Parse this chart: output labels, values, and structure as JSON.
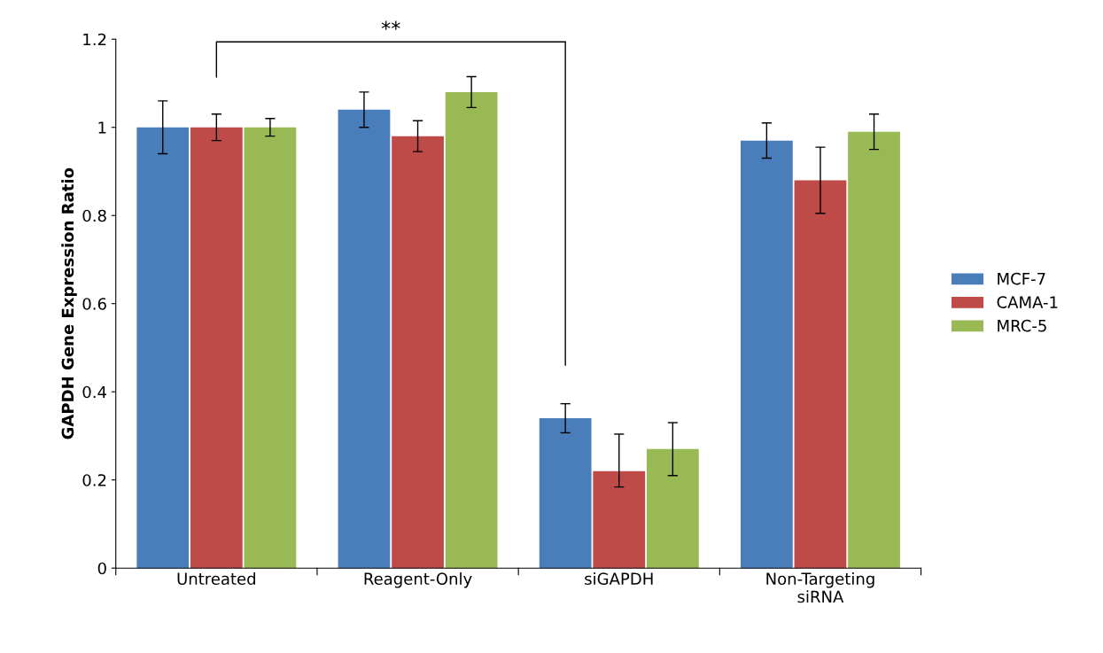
{
  "chart_data": {
    "type": "bar",
    "ylabel": "GAPDH Gene Expression Ratio",
    "categories": [
      "Untreated",
      "Reagent-Only",
      "siGAPDH",
      "Non-Targeting\nsiRNA"
    ],
    "series": [
      {
        "name": "MCF-7",
        "color": "#4a7ebb",
        "values": [
          1.0,
          1.04,
          0.34,
          0.97
        ],
        "errors": [
          0.06,
          0.04,
          0.033,
          0.04
        ]
      },
      {
        "name": "CAMA-1",
        "color": "#be4b48",
        "values": [
          1.0,
          0.98,
          0.22,
          0.88
        ],
        "errors": [
          0.03,
          0.035,
          [
            0.184,
            0.304
          ],
          0.075
        ]
      },
      {
        "name": "MRC-5",
        "color": "#98b954",
        "values": [
          1.0,
          1.08,
          0.27,
          0.99
        ],
        "errors": [
          0.02,
          0.035,
          0.06,
          0.04
        ]
      }
    ],
    "ylim": [
      0,
      1.2
    ],
    "yticks": [
      0,
      0.2,
      0.4,
      0.6,
      0.8,
      1,
      1.2
    ],
    "annotations": [
      "**"
    ],
    "legend": "right",
    "grid": false
  }
}
